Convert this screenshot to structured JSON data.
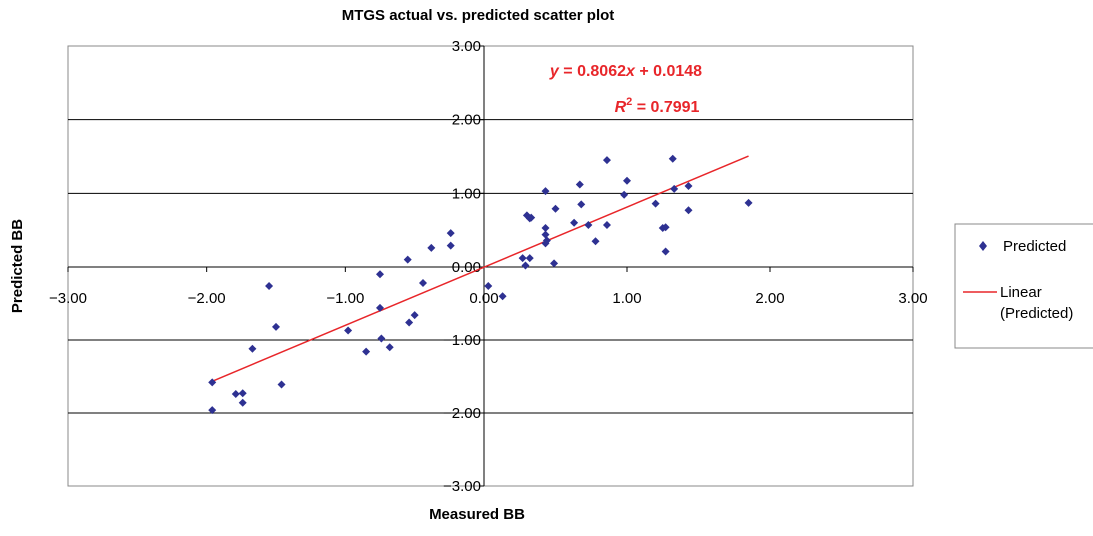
{
  "chart_data": {
    "type": "scatter",
    "title": "MTGS actual vs. predicted scatter plot",
    "xlabel": "Measured BB",
    "ylabel": "Predicted BB",
    "xlim": [
      -3,
      3
    ],
    "ylim": [
      -3,
      3
    ],
    "x_ticks": [
      "−3.00",
      "−2.00",
      "−1.00",
      "0.00",
      "1.00",
      "2.00",
      "3.00"
    ],
    "y_ticks": [
      "−3.00",
      "−2.00",
      "−1.00",
      "0.00",
      "1.00",
      "2.00",
      "3.00"
    ],
    "grid": "horizontal",
    "legend_position": "right",
    "colors": {
      "points": "#2e3192",
      "trendline": "#e8262a"
    },
    "series": [
      {
        "name": "Predicted",
        "marker": "diamond",
        "points": [
          {
            "x": -1.96,
            "y": -1.58
          },
          {
            "x": -1.96,
            "y": -1.96
          },
          {
            "x": -1.79,
            "y": -1.74
          },
          {
            "x": -1.74,
            "y": -1.73
          },
          {
            "x": -1.74,
            "y": -1.86
          },
          {
            "x": -1.67,
            "y": -1.12
          },
          {
            "x": -1.55,
            "y": -0.26
          },
          {
            "x": -1.5,
            "y": -0.82
          },
          {
            "x": -1.46,
            "y": -1.61
          },
          {
            "x": -0.98,
            "y": -0.87
          },
          {
            "x": -0.85,
            "y": -1.16
          },
          {
            "x": -0.75,
            "y": -0.1
          },
          {
            "x": -0.75,
            "y": -0.56
          },
          {
            "x": -0.74,
            "y": -0.98
          },
          {
            "x": -0.68,
            "y": -1.1
          },
          {
            "x": -0.55,
            "y": 0.1
          },
          {
            "x": -0.54,
            "y": -0.76
          },
          {
            "x": -0.5,
            "y": -0.66
          },
          {
            "x": -0.44,
            "y": -0.22
          },
          {
            "x": -0.38,
            "y": 0.26
          },
          {
            "x": -0.24,
            "y": 0.29
          },
          {
            "x": -0.24,
            "y": 0.46
          },
          {
            "x": 0.03,
            "y": -0.26
          },
          {
            "x": 0.13,
            "y": -0.4
          },
          {
            "x": 0.27,
            "y": 0.12
          },
          {
            "x": 0.29,
            "y": 0.02
          },
          {
            "x": 0.3,
            "y": 0.7
          },
          {
            "x": 0.32,
            "y": 0.66
          },
          {
            "x": 0.32,
            "y": 0.12
          },
          {
            "x": 0.33,
            "y": 0.67
          },
          {
            "x": 0.43,
            "y": 1.03
          },
          {
            "x": 0.43,
            "y": 0.53
          },
          {
            "x": 0.43,
            "y": 0.44
          },
          {
            "x": 0.43,
            "y": 0.32
          },
          {
            "x": 0.44,
            "y": 0.36
          },
          {
            "x": 0.49,
            "y": 0.05
          },
          {
            "x": 0.5,
            "y": 0.79
          },
          {
            "x": 0.63,
            "y": 0.6
          },
          {
            "x": 0.67,
            "y": 1.12
          },
          {
            "x": 0.68,
            "y": 0.85
          },
          {
            "x": 0.73,
            "y": 0.57
          },
          {
            "x": 0.78,
            "y": 0.35
          },
          {
            "x": 0.86,
            "y": 1.45
          },
          {
            "x": 0.86,
            "y": 0.57
          },
          {
            "x": 0.98,
            "y": 0.98
          },
          {
            "x": 1.0,
            "y": 1.17
          },
          {
            "x": 1.2,
            "y": 0.86
          },
          {
            "x": 1.25,
            "y": 0.53
          },
          {
            "x": 1.27,
            "y": 0.54
          },
          {
            "x": 1.27,
            "y": 0.21
          },
          {
            "x": 1.32,
            "y": 1.47
          },
          {
            "x": 1.33,
            "y": 1.06
          },
          {
            "x": 1.43,
            "y": 1.1
          },
          {
            "x": 1.43,
            "y": 0.77
          },
          {
            "x": 1.85,
            "y": 0.87
          }
        ]
      },
      {
        "name": "Linear (Predicted)",
        "type": "trendline",
        "slope": 0.8062,
        "intercept": 0.0148,
        "x_range": [
          -1.96,
          1.85
        ]
      }
    ],
    "annotations": {
      "equation": {
        "y": "y",
        "eq": " = 0.8062",
        "x": "x",
        "rest": " + 0.0148"
      },
      "r_squared": {
        "r": "R",
        "sup": "2",
        "rest": " = 0.7991"
      }
    },
    "legend": {
      "predicted": "Predicted",
      "linear_line1": "Linear",
      "linear_line2": "(Predicted)"
    }
  }
}
